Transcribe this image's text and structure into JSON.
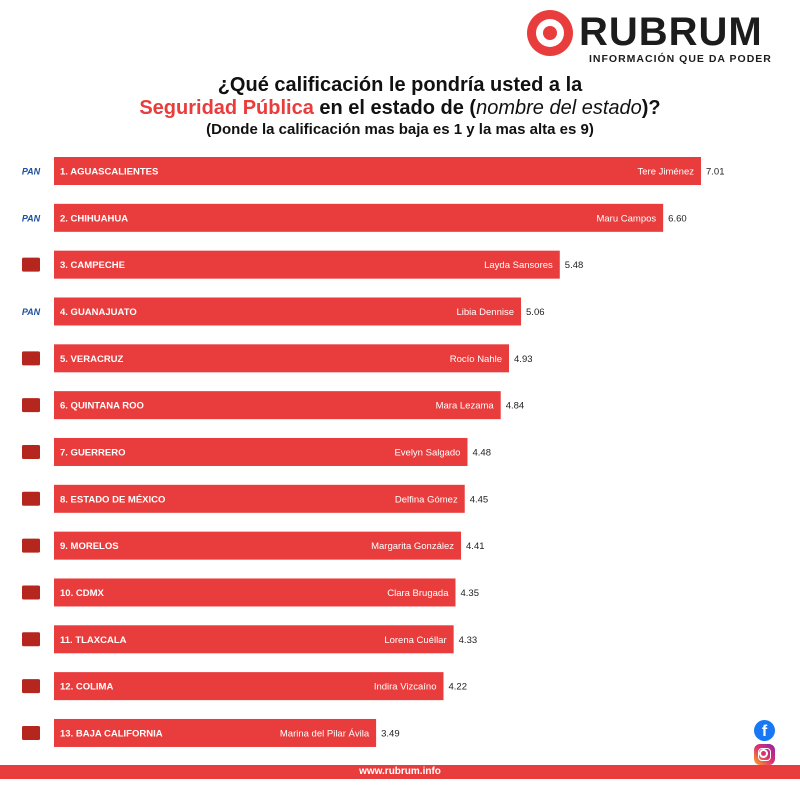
{
  "brand": {
    "name": "RUBRUM",
    "tagline": "INFORMACIÓN QUE DA PODER",
    "color": "#e93c3c"
  },
  "title": {
    "line1": "¿Qué calificación le pondría usted a la",
    "line2_highlight": "Seguridad Pública",
    "line2_rest": " en el estado de (",
    "line2_italic": "nombre del estado",
    "line2_end": ")?",
    "line3": "(Donde la calificación mas baja es 1 y la mas alta es 9)"
  },
  "footer": {
    "url": "www.rubrum.info"
  },
  "social": {
    "facebook_icon": "facebook-icon",
    "instagram_icon": "instagram-icon"
  },
  "chart_data": {
    "type": "bar",
    "orientation": "horizontal",
    "bar_color": "#e93c3c",
    "categories": [
      "1. AGUASCALIENTES",
      "2. CHIHUAHUA",
      "3. CAMPECHE",
      "4. GUANAJUATO",
      "5. VERACRUZ",
      "6. QUINTANA ROO",
      "7. GUERRERO",
      "8. ESTADO DE MÉXICO",
      "9. MORELOS",
      "10. CDMX",
      "11. TLAXCALA",
      "12. COLIMA",
      "13. BAJA CALIFORNIA"
    ],
    "governors": [
      "Tere Jiménez",
      "Maru Campos",
      "Layda Sansores",
      "Libia Dennise",
      "Rocío Nahle",
      "Mara Lezama",
      "Evelyn Salgado",
      "Delfina Gómez",
      "Margarita González",
      "Clara Brugada",
      "Lorena Cuéllar",
      "Indira Vizcaíno",
      "Marina del Pilar Ávila"
    ],
    "parties": [
      "PAN",
      "PAN",
      "morena",
      "PAN",
      "morena",
      "morena",
      "morena",
      "morena",
      "morena",
      "morena",
      "morena",
      "morena",
      "morena"
    ],
    "values": [
      7.01,
      6.6,
      5.48,
      5.06,
      4.93,
      4.84,
      4.48,
      4.45,
      4.41,
      4.35,
      4.33,
      4.22,
      3.49
    ],
    "value_labels": [
      "7.01",
      "6.60",
      "5.48",
      "5.06",
      "4.93",
      "4.84",
      "4.48",
      "4.45",
      "4.41",
      "4.35",
      "4.33",
      "4.22",
      "3.49"
    ],
    "party_colors": {
      "PAN": "#1c4fa0",
      "morena": "#b5261e"
    }
  }
}
